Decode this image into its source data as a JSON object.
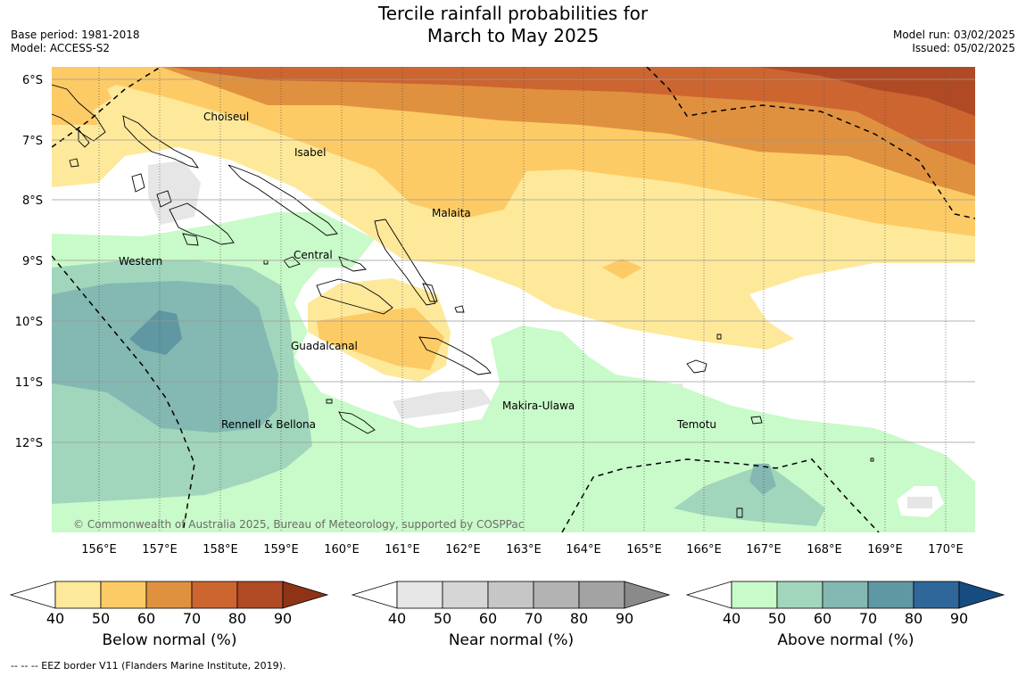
{
  "title": {
    "line1": "Tercile rainfall probabilities for",
    "line2": "March to May 2025"
  },
  "meta_left": {
    "base_period": "Base period: 1981-2018",
    "model": "Model: ACCESS-S2"
  },
  "meta_right": {
    "model_run": "Model run: 03/02/2025",
    "issued": "Issued: 05/02/2025"
  },
  "map": {
    "lat_labels": [
      "6°S",
      "7°S",
      "8°S",
      "9°S",
      "10°S",
      "11°S",
      "12°S"
    ],
    "lon_labels": [
      "156°E",
      "157°E",
      "158°E",
      "159°E",
      "160°E",
      "161°E",
      "162°E",
      "163°E",
      "164°E",
      "165°E",
      "166°E",
      "167°E",
      "168°E",
      "169°E",
      "170°E"
    ],
    "provinces": [
      "Choiseul",
      "Isabel",
      "Malaita",
      "Central",
      "Western",
      "Guadalcanal",
      "Rennell & Bellona",
      "Makira-Ulawa",
      "Temotu"
    ],
    "copyright": "© Commonwealth of Australia 2025, Bureau of Meteorology, supported by COSPPac"
  },
  "colorbars": [
    {
      "label": "Below normal (%)",
      "ticks": [
        "40",
        "50",
        "60",
        "70",
        "80",
        "90"
      ],
      "colors": [
        "#ffffff",
        "#fee99b",
        "#fdcb66",
        "#e0913f",
        "#cc6530",
        "#b04a25",
        "#8e3316"
      ]
    },
    {
      "label": "Near normal (%)",
      "ticks": [
        "40",
        "50",
        "60",
        "70",
        "80",
        "90"
      ],
      "colors": [
        "#ffffff",
        "#e6e6e6",
        "#d6d6d6",
        "#c6c6c6",
        "#b3b3b3",
        "#a3a3a3",
        "#8a8a8a"
      ]
    },
    {
      "label": "Above normal (%)",
      "ticks": [
        "40",
        "50",
        "60",
        "70",
        "80",
        "90"
      ],
      "colors": [
        "#ffffff",
        "#c9fac9",
        "#a1d6bd",
        "#84b8b2",
        "#5f97a3",
        "#30679a",
        "#174c80"
      ]
    }
  ],
  "eez_note": "--  --  -- EEZ border V11 (Flanders Marine Institute, 2019)."
}
